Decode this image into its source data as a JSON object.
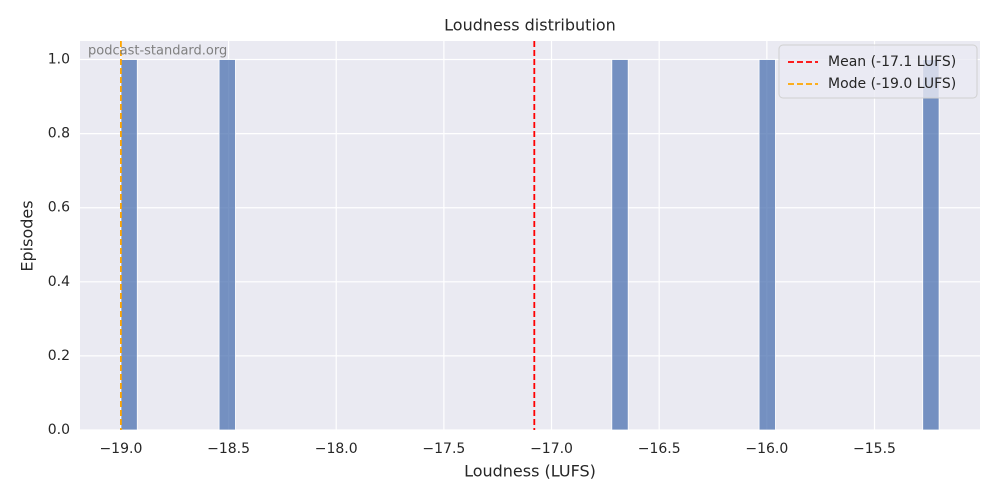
{
  "chart_data": {
    "type": "histogram",
    "title": "Loudness distribution",
    "x_label": "Loudness (LUFS)",
    "y_label": "Episodes",
    "watermark": "podcast-standard.org",
    "bins": [
      -19,
      -18.924,
      -18.848,
      -18.772,
      -18.696,
      -18.62,
      -18.544,
      -18.468,
      -18.392,
      -18.316,
      -18.24,
      -18.164,
      -18.088,
      -18.012,
      -17.936,
      -17.86,
      -17.784,
      -17.708,
      -17.632,
      -17.556,
      -17.48,
      -17.404,
      -17.328,
      -17.252,
      -17.176,
      -17.1,
      -17.024,
      -16.948,
      -16.872,
      -16.796,
      -16.72,
      -16.644,
      -16.568,
      -16.492,
      -16.416,
      -16.34,
      -16.264,
      -16.188,
      -16.112,
      -16.036,
      -15.96,
      -15.884,
      -15.808,
      -15.732,
      -15.656,
      -15.58,
      -15.504,
      -15.428,
      -15.352,
      -15.276,
      -15.2
    ],
    "values": [
      1,
      0,
      0,
      0,
      0,
      0,
      1,
      0,
      0,
      0,
      0,
      0,
      0,
      0,
      0,
      0,
      0,
      0,
      0,
      0,
      0,
      0,
      0,
      0,
      0,
      0,
      0,
      0,
      0,
      0,
      1,
      0,
      0,
      0,
      0,
      0,
      0,
      0,
      0,
      1,
      0,
      0,
      0,
      0,
      0,
      0,
      0,
      0,
      0,
      1
    ],
    "color": "#4c72b0",
    "mean_line": {
      "value": -17.08,
      "label": "Mean (-17.1 LUFS)",
      "color": "#ff0000"
    },
    "mode_line": {
      "value": -19.0,
      "label": "Mode (-19.0 LUFS)",
      "color": "#ffa500"
    },
    "xlim": [
      -19.19,
      -15.01
    ],
    "ylim": [
      0,
      1.05
    ],
    "xticks": [
      {
        "value": -19,
        "label": "−19.0"
      },
      {
        "value": -18.5,
        "label": "−18.5"
      },
      {
        "value": -18,
        "label": "−18.0"
      },
      {
        "value": -17.5,
        "label": "−17.5"
      },
      {
        "value": -17,
        "label": "−17.0"
      },
      {
        "value": -16.5,
        "label": "−16.5"
      },
      {
        "value": -16,
        "label": "−16.0"
      },
      {
        "value": -15.5,
        "label": "−15.5"
      }
    ],
    "yticks": [
      {
        "value": 0,
        "label": "0.0"
      },
      0.2,
      0.4,
      0.6,
      0.8,
      {
        "value": 1,
        "label": "1.0"
      }
    ],
    "grid": true,
    "legend": "upper right"
  }
}
